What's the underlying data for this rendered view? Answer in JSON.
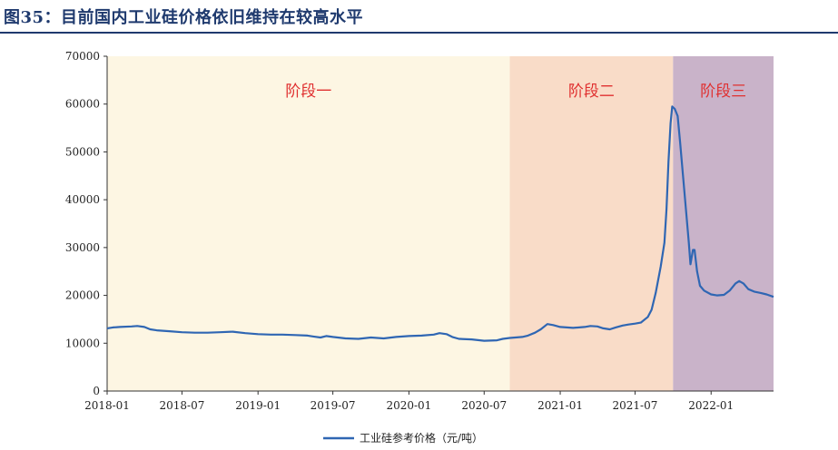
{
  "title": "图35：目前国内工业硅价格依旧维持在较高水平",
  "colors": {
    "title": "#1f3a6e",
    "series": "#2f66b3",
    "phase_label": "#e03030"
  },
  "chart_data": {
    "type": "line",
    "title": "图35：目前国内工业硅价格依旧维持在较高水平",
    "xlabel": "",
    "ylabel": "",
    "xlim": [
      "2018-01",
      "2022-06"
    ],
    "ylim": [
      0,
      70000
    ],
    "yticks": [
      0,
      10000,
      20000,
      30000,
      40000,
      50000,
      60000,
      70000
    ],
    "xticks": [
      "2018-01",
      "2018-07",
      "2019-01",
      "2019-07",
      "2020-01",
      "2020-07",
      "2021-01",
      "2021-07",
      "2022-01"
    ],
    "grid": false,
    "legend_position": "bottom-center",
    "phases": [
      {
        "label": "阶段一",
        "start": "2018-01",
        "end": "2020-09",
        "color": "#fdf6e3"
      },
      {
        "label": "阶段二",
        "start": "2020-09",
        "end": "2021-10",
        "color": "#f9dcc8"
      },
      {
        "label": "阶段三",
        "start": "2021-10",
        "end": "2022-06",
        "color": "#c9b3c9"
      }
    ],
    "series": [
      {
        "name": "工业硅参考价格（元/吨）",
        "points": [
          [
            "2018-01-01",
            13100
          ],
          [
            "2018-01-15",
            13300
          ],
          [
            "2018-02-01",
            13400
          ],
          [
            "2018-03-01",
            13500
          ],
          [
            "2018-03-15",
            13600
          ],
          [
            "2018-04-01",
            13400
          ],
          [
            "2018-04-15",
            12900
          ],
          [
            "2018-05-01",
            12700
          ],
          [
            "2018-06-01",
            12500
          ],
          [
            "2018-07-01",
            12300
          ],
          [
            "2018-08-01",
            12200
          ],
          [
            "2018-09-01",
            12200
          ],
          [
            "2018-10-01",
            12300
          ],
          [
            "2018-11-01",
            12400
          ],
          [
            "2018-12-01",
            12100
          ],
          [
            "2019-01-01",
            11900
          ],
          [
            "2019-02-01",
            11800
          ],
          [
            "2019-03-01",
            11800
          ],
          [
            "2019-04-01",
            11700
          ],
          [
            "2019-05-01",
            11600
          ],
          [
            "2019-05-15",
            11400
          ],
          [
            "2019-06-01",
            11200
          ],
          [
            "2019-06-15",
            11500
          ],
          [
            "2019-07-01",
            11300
          ],
          [
            "2019-08-01",
            11000
          ],
          [
            "2019-09-01",
            10900
          ],
          [
            "2019-10-01",
            11200
          ],
          [
            "2019-11-01",
            11000
          ],
          [
            "2019-12-01",
            11300
          ],
          [
            "2020-01-01",
            11500
          ],
          [
            "2020-02-01",
            11600
          ],
          [
            "2020-03-01",
            11800
          ],
          [
            "2020-03-15",
            12100
          ],
          [
            "2020-04-01",
            11900
          ],
          [
            "2020-04-15",
            11300
          ],
          [
            "2020-05-01",
            10900
          ],
          [
            "2020-06-01",
            10800
          ],
          [
            "2020-07-01",
            10500
          ],
          [
            "2020-08-01",
            10600
          ],
          [
            "2020-08-15",
            10900
          ],
          [
            "2020-09-01",
            11100
          ],
          [
            "2020-10-01",
            11300
          ],
          [
            "2020-10-15",
            11600
          ],
          [
            "2020-11-01",
            12200
          ],
          [
            "2020-11-15",
            12900
          ],
          [
            "2020-12-01",
            14000
          ],
          [
            "2020-12-15",
            13800
          ],
          [
            "2021-01-01",
            13400
          ],
          [
            "2021-02-01",
            13200
          ],
          [
            "2021-03-01",
            13400
          ],
          [
            "2021-03-15",
            13600
          ],
          [
            "2021-04-01",
            13500
          ],
          [
            "2021-04-15",
            13100
          ],
          [
            "2021-05-01",
            12900
          ],
          [
            "2021-05-15",
            13300
          ],
          [
            "2021-06-01",
            13700
          ],
          [
            "2021-06-15",
            13900
          ],
          [
            "2021-07-01",
            14100
          ],
          [
            "2021-07-15",
            14300
          ],
          [
            "2021-08-01",
            15500
          ],
          [
            "2021-08-10",
            17000
          ],
          [
            "2021-08-20",
            20500
          ],
          [
            "2021-09-01",
            26000
          ],
          [
            "2021-09-10",
            31000
          ],
          [
            "2021-09-15",
            38000
          ],
          [
            "2021-09-20",
            48000
          ],
          [
            "2021-09-25",
            56000
          ],
          [
            "2021-09-29",
            59500
          ],
          [
            "2021-10-05",
            59000
          ],
          [
            "2021-10-12",
            57500
          ],
          [
            "2021-10-18",
            52000
          ],
          [
            "2021-10-25",
            45000
          ],
          [
            "2021-11-01",
            38000
          ],
          [
            "2021-11-08",
            31000
          ],
          [
            "2021-11-12",
            26500
          ],
          [
            "2021-11-18",
            29500
          ],
          [
            "2021-11-22",
            29500
          ],
          [
            "2021-11-28",
            25000
          ],
          [
            "2021-12-05",
            22000
          ],
          [
            "2021-12-15",
            21000
          ],
          [
            "2022-01-01",
            20200
          ],
          [
            "2022-01-15",
            20000
          ],
          [
            "2022-02-01",
            20100
          ],
          [
            "2022-02-15",
            21000
          ],
          [
            "2022-03-01",
            22500
          ],
          [
            "2022-03-10",
            23000
          ],
          [
            "2022-03-20",
            22500
          ],
          [
            "2022-04-01",
            21300
          ],
          [
            "2022-04-15",
            20800
          ],
          [
            "2022-05-01",
            20500
          ],
          [
            "2022-05-15",
            20200
          ],
          [
            "2022-06-01",
            19700
          ]
        ]
      }
    ]
  }
}
